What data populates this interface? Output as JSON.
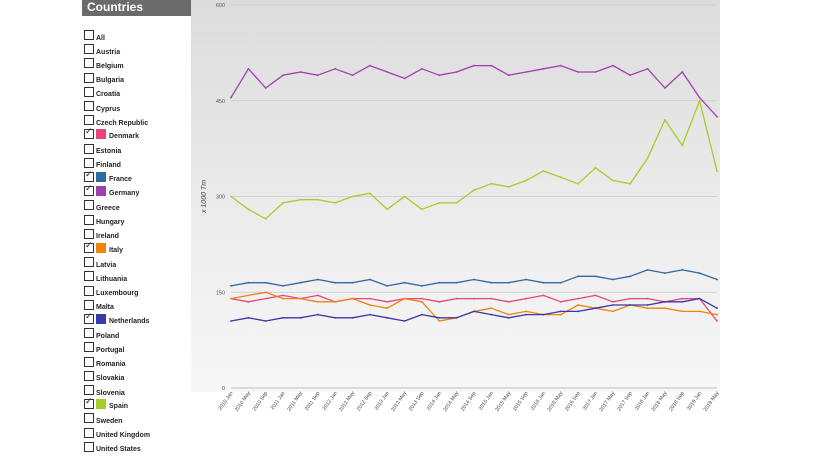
{
  "sidebar": {
    "title": "Countries"
  },
  "countries": [
    {
      "label": "All",
      "checked": false,
      "color": null
    },
    {
      "label": "Austria",
      "checked": false,
      "color": null
    },
    {
      "label": "Belgium",
      "checked": false,
      "color": null
    },
    {
      "label": "Bulgaria",
      "checked": false,
      "color": null
    },
    {
      "label": "Croatia",
      "checked": false,
      "color": null
    },
    {
      "label": "Cyprus",
      "checked": false,
      "color": null
    },
    {
      "label": "Czech Republic",
      "checked": false,
      "color": null
    },
    {
      "label": "Denmark",
      "checked": true,
      "color": "#e8457a"
    },
    {
      "label": "Estonia",
      "checked": false,
      "color": null
    },
    {
      "label": "Finland",
      "checked": false,
      "color": null
    },
    {
      "label": "France",
      "checked": true,
      "color": "#2f6aa1"
    },
    {
      "label": "Germany",
      "checked": true,
      "color": "#a040b0"
    },
    {
      "label": "Greece",
      "checked": false,
      "color": null
    },
    {
      "label": "Hungary",
      "checked": false,
      "color": null
    },
    {
      "label": "Ireland",
      "checked": false,
      "color": null
    },
    {
      "label": "Italy",
      "checked": true,
      "color": "#f0820f"
    },
    {
      "label": "Latvia",
      "checked": false,
      "color": null
    },
    {
      "label": "Lithuania",
      "checked": false,
      "color": null
    },
    {
      "label": "Luxembourg",
      "checked": false,
      "color": null
    },
    {
      "label": "Malta",
      "checked": false,
      "color": null
    },
    {
      "label": "Netherlands",
      "checked": true,
      "color": "#3838a8"
    },
    {
      "label": "Poland",
      "checked": false,
      "color": null
    },
    {
      "label": "Portugal",
      "checked": false,
      "color": null
    },
    {
      "label": "Romania",
      "checked": false,
      "color": null
    },
    {
      "label": "Slovakia",
      "checked": false,
      "color": null
    },
    {
      "label": "Slovenia",
      "checked": false,
      "color": null
    },
    {
      "label": "Spain",
      "checked": true,
      "color": "#a8cc28"
    },
    {
      "label": "Sweden",
      "checked": false,
      "color": null
    },
    {
      "label": "United Kingdom",
      "checked": false,
      "color": null
    },
    {
      "label": "United States",
      "checked": false,
      "color": null
    }
  ],
  "chart_data": {
    "type": "line",
    "title": "",
    "xlabel": "",
    "ylabel": "x 1000 Tm",
    "ylim": [
      0,
      600
    ],
    "yticks": [
      0,
      150,
      300,
      450,
      600
    ],
    "grid": true,
    "legend": "none",
    "x": [
      "2010 Jan",
      "2010 May",
      "2010 Sep",
      "2011 Jan",
      "2011 May",
      "2011 Sep",
      "2012 Jan",
      "2012 May",
      "2012 Sep",
      "2013 Jan",
      "2013 May",
      "2013 Sep",
      "2014 Jan",
      "2014 May",
      "2014 Sep",
      "2015 Jan",
      "2015 May",
      "2015 Sep",
      "2016 Jan",
      "2016 May",
      "2016 Sep",
      "2017 Jan",
      "2017 May",
      "2017 Sep",
      "2018 Jan",
      "2018 May",
      "2018 Sep",
      "2019 Jan",
      "2019 May"
    ],
    "series": [
      {
        "name": "Germany",
        "color": "#a040b0",
        "values": [
          455,
          500,
          470,
          490,
          495,
          490,
          500,
          490,
          505,
          495,
          485,
          500,
          490,
          495,
          505,
          505,
          490,
          495,
          500,
          505,
          495,
          495,
          505,
          490,
          500,
          470,
          495,
          455,
          425
        ]
      },
      {
        "name": "Spain",
        "color": "#a8cc28",
        "values": [
          300,
          280,
          265,
          290,
          295,
          295,
          290,
          300,
          305,
          280,
          300,
          280,
          290,
          290,
          310,
          320,
          315,
          325,
          340,
          330,
          320,
          345,
          325,
          320,
          360,
          420,
          380,
          450,
          340
        ]
      },
      {
        "name": "France",
        "color": "#2f6aa1",
        "values": [
          160,
          165,
          165,
          160,
          165,
          170,
          165,
          165,
          170,
          160,
          165,
          160,
          165,
          165,
          170,
          165,
          165,
          170,
          165,
          165,
          175,
          175,
          170,
          175,
          185,
          180,
          185,
          180,
          170
        ]
      },
      {
        "name": "Denmark",
        "color": "#e8457a",
        "values": [
          140,
          135,
          140,
          145,
          140,
          145,
          135,
          140,
          140,
          135,
          140,
          140,
          135,
          140,
          140,
          140,
          135,
          140,
          145,
          135,
          140,
          145,
          135,
          140,
          140,
          135,
          140,
          140,
          105
        ]
      },
      {
        "name": "Italy",
        "color": "#f0820f",
        "values": [
          140,
          145,
          150,
          140,
          140,
          135,
          135,
          140,
          130,
          125,
          140,
          135,
          105,
          110,
          120,
          125,
          115,
          120,
          115,
          115,
          130,
          125,
          120,
          130,
          125,
          125,
          120,
          120,
          115
        ]
      },
      {
        "name": "Netherlands",
        "color": "#3838a8",
        "values": [
          105,
          110,
          105,
          110,
          110,
          115,
          110,
          110,
          115,
          110,
          105,
          115,
          110,
          110,
          120,
          115,
          110,
          115,
          115,
          120,
          120,
          125,
          130,
          130,
          130,
          135,
          135,
          140,
          125
        ]
      }
    ]
  }
}
